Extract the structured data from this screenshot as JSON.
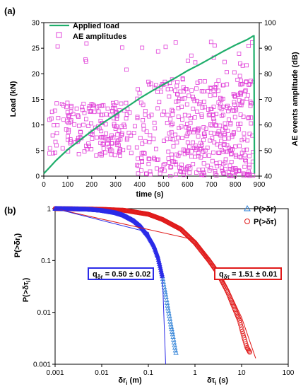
{
  "panel_a": {
    "label": "(a)",
    "x_axis": {
      "label": "time (s)",
      "min": 0,
      "max": 900,
      "ticks": [
        "0",
        "100",
        "200",
        "300",
        "400",
        "500",
        "600",
        "700",
        "800",
        "900"
      ]
    },
    "y_left": {
      "label": "Load (kN)",
      "min": 0,
      "max": 30,
      "ticks": [
        "0",
        "5",
        "10",
        "15",
        "20",
        "25",
        "30"
      ]
    },
    "y_right": {
      "label": "AE events amplitude (dB)",
      "min": 40,
      "max": 100,
      "ticks": [
        "40",
        "50",
        "60",
        "70",
        "80",
        "90",
        "100"
      ]
    },
    "legend": {
      "load": "Applied load",
      "ae": "AE amplitudes"
    },
    "colors": {
      "load": "#1fae6b",
      "ae": "#e040d8"
    }
  },
  "panel_b": {
    "label": "(b)",
    "x_axis": {
      "label_left": "δr",
      "label_left_sub": "i",
      "label_left_unit": " (m)",
      "label_right": "δτ",
      "label_right_sub": "i",
      "label_right_unit": " (s)",
      "ticks": [
        "0.001",
        "0.01",
        "0.1",
        "1",
        "10",
        "100"
      ]
    },
    "y_axis": {
      "label": "P(>δr",
      "label_sub": "i",
      "label_end": ")",
      "label2": "P(>δτ",
      "label2_sub": "i",
      "label2_end": ")",
      "ticks": [
        "0.001",
        "0.01",
        "0.1",
        "1"
      ]
    },
    "legend": {
      "dr": "P(>δr)",
      "dt": "P(>δτ)"
    },
    "box_dr": {
      "prefix": "q",
      "sub": "δr",
      "text": " = 0.50 ± 0.02"
    },
    "box_dt": {
      "prefix": "q",
      "sub": "δτ",
      "text": " = 1.51 ± 0.01"
    },
    "colors": {
      "dr": "#2b2be8",
      "dt": "#e01a1a"
    }
  },
  "chart_data": [
    {
      "type": "line",
      "title": "",
      "xlabel": "time (s)",
      "ylabel": "Load (kN)",
      "y2label": "AE events amplitude (dB)",
      "xlim": [
        0,
        900
      ],
      "ylim": [
        0,
        30
      ],
      "y2lim": [
        40,
        100
      ],
      "legend_position": "top-left",
      "grid": false,
      "series": [
        {
          "name": "Applied load",
          "type": "line",
          "axis": "left",
          "x": [
            0,
            20,
            50,
            100,
            150,
            200,
            250,
            300,
            350,
            400,
            450,
            500,
            550,
            600,
            650,
            700,
            750,
            800,
            850,
            875,
            878,
            880
          ],
          "y": [
            0.5,
            1.5,
            3.0,
            5.2,
            7.0,
            8.8,
            10.5,
            12.0,
            13.6,
            15.2,
            16.6,
            17.9,
            19.2,
            20.6,
            21.8,
            23.1,
            24.4,
            25.6,
            26.7,
            27.4,
            27.4,
            0.5
          ]
        },
        {
          "name": "AE amplitudes",
          "type": "scatter",
          "axis": "right",
          "note_range": "approx. 650 points, 40–93 dB, denser after 350 s"
        }
      ]
    },
    {
      "type": "scatter",
      "title": "",
      "xlabel": "δri (m)   δτi (s)",
      "ylabel": "P(>δri) / P(>δτi)",
      "x_scale": "log",
      "y_scale": "log",
      "xlim": [
        0.001,
        100
      ],
      "ylim": [
        0.001,
        1
      ],
      "legend_position": "top-right",
      "series": [
        {
          "name": "P(>δr)",
          "marker": "triangle",
          "x": [
            0.001,
            0.002,
            0.005,
            0.01,
            0.02,
            0.03,
            0.05,
            0.07,
            0.1,
            0.13,
            0.16,
            0.2,
            0.22,
            0.24,
            0.26,
            0.28,
            0.3,
            0.32,
            0.34,
            0.36,
            0.38,
            0.4
          ],
          "y": [
            1,
            0.99,
            0.97,
            0.92,
            0.83,
            0.74,
            0.58,
            0.45,
            0.3,
            0.2,
            0.12,
            0.05,
            0.03,
            0.02,
            0.013,
            0.009,
            0.0062,
            0.0046,
            0.0034,
            0.0025,
            0.0019,
            0.0015
          ]
        },
        {
          "name": "P(>δτ)",
          "marker": "circle",
          "x": [
            0.001,
            0.003,
            0.01,
            0.03,
            0.1,
            0.2,
            0.5,
            1,
            2,
            3,
            5,
            7,
            9,
            11,
            13,
            15
          ],
          "y": [
            1,
            0.99,
            0.97,
            0.93,
            0.78,
            0.62,
            0.4,
            0.22,
            0.1,
            0.06,
            0.025,
            0.012,
            0.007,
            0.0035,
            0.0021,
            0.0017
          ]
        },
        {
          "name": "fit δr",
          "type": "line",
          "x": [
            0.001,
            0.1,
            0.2,
            0.235
          ],
          "y": [
            1,
            0.35,
            0.05,
            0.001
          ]
        },
        {
          "name": "fit δτ",
          "type": "line",
          "x": [
            0.001,
            1,
            5,
            10,
            20
          ],
          "y": [
            1,
            0.25,
            0.03,
            0.008,
            0.0013
          ]
        }
      ],
      "annotations": [
        "qδr = 0.50 ± 0.02",
        "qδτ = 1.51 ± 0.01"
      ]
    }
  ]
}
